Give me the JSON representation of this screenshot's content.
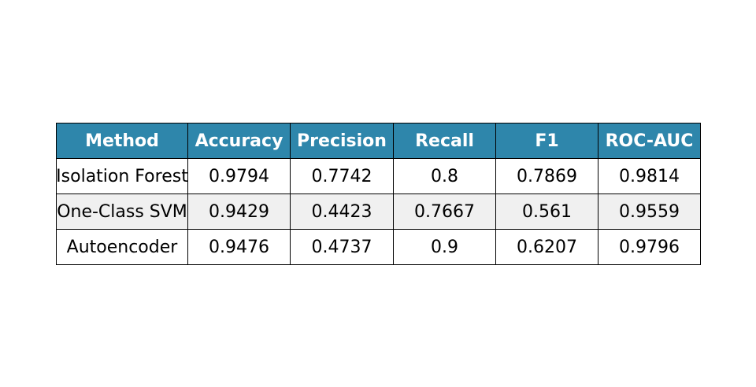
{
  "table": {
    "header": [
      "Method",
      "Accuracy",
      "Precision",
      "Recall",
      "F1",
      "ROC-AUC"
    ],
    "rows": [
      [
        "Isolation Forest",
        "0.9794",
        "0.7742",
        "0.8",
        "0.7869",
        "0.9814"
      ],
      [
        "One-Class SVM",
        "0.9429",
        "0.4423",
        "0.7667",
        "0.561",
        "0.9559"
      ],
      [
        "Autoencoder",
        "0.9476",
        "0.4737",
        "0.9",
        "0.6207",
        "0.9796"
      ]
    ]
  }
}
